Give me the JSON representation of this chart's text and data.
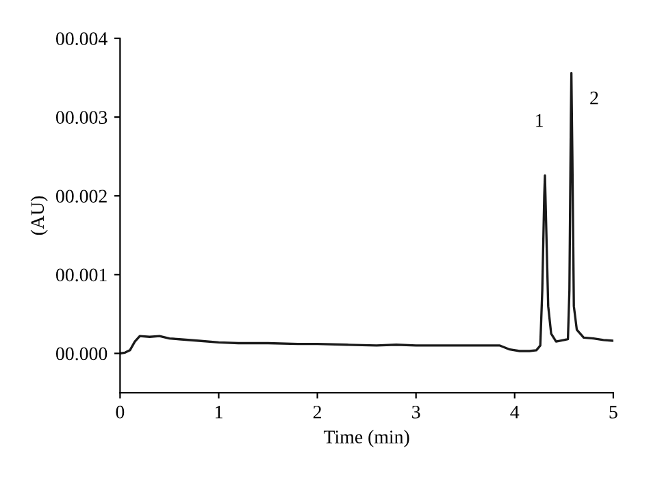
{
  "chart_data": {
    "type": "line",
    "xlabel": "Time (min)",
    "ylabel": "(AU)",
    "xlim": [
      0,
      5
    ],
    "xticks": [
      0,
      1,
      2,
      3,
      4,
      5
    ],
    "ylim": [
      -0.0005,
      0.004
    ],
    "yticks": [
      {
        "value": 0,
        "label": "00.000"
      },
      {
        "value": 0.001,
        "label": "00.001"
      },
      {
        "value": 0.002,
        "label": "00.002"
      },
      {
        "value": 0.003,
        "label": "00.003"
      },
      {
        "value": 0.004,
        "label": "00.004"
      }
    ],
    "grid": false,
    "legend": false,
    "marker": "none",
    "line_style": "solid",
    "x": [
      0,
      0.05,
      0.1,
      0.15,
      0.2,
      0.3,
      0.4,
      0.5,
      0.6,
      0.8,
      1.0,
      1.2,
      1.5,
      1.8,
      2.0,
      2.3,
      2.6,
      2.8,
      3.0,
      3.3,
      3.6,
      3.85,
      3.95,
      4.05,
      4.15,
      4.22,
      4.26,
      4.28,
      4.3,
      4.307,
      4.32,
      4.34,
      4.37,
      4.42,
      4.5,
      4.54,
      4.555,
      4.57,
      4.575,
      4.585,
      4.6,
      4.63,
      4.7,
      4.8,
      4.9,
      5.0
    ],
    "series": [
      {
        "color": "#1a1a1a",
        "values": [
          0.0,
          1e-05,
          4e-05,
          0.00015,
          0.00022,
          0.00021,
          0.00022,
          0.00019,
          0.00018,
          0.00016,
          0.00014,
          0.00013,
          0.00013,
          0.00012,
          0.00012,
          0.00011,
          0.0001,
          0.00011,
          0.0001,
          0.0001,
          0.0001,
          0.0001,
          5e-05,
          3e-05,
          3e-05,
          4e-05,
          0.0001,
          0.0008,
          0.002,
          0.00226,
          0.0016,
          0.0006,
          0.00025,
          0.00015,
          0.00017,
          0.00018,
          0.0008,
          0.003,
          0.00356,
          0.0025,
          0.0006,
          0.0003,
          0.0002,
          0.00019,
          0.00017,
          0.00016
        ]
      }
    ],
    "annotations": [
      {
        "text": "1",
        "x": 4.307,
        "y": 0.00226
      },
      {
        "text": "2",
        "x": 4.575,
        "y": 0.00356
      }
    ]
  }
}
